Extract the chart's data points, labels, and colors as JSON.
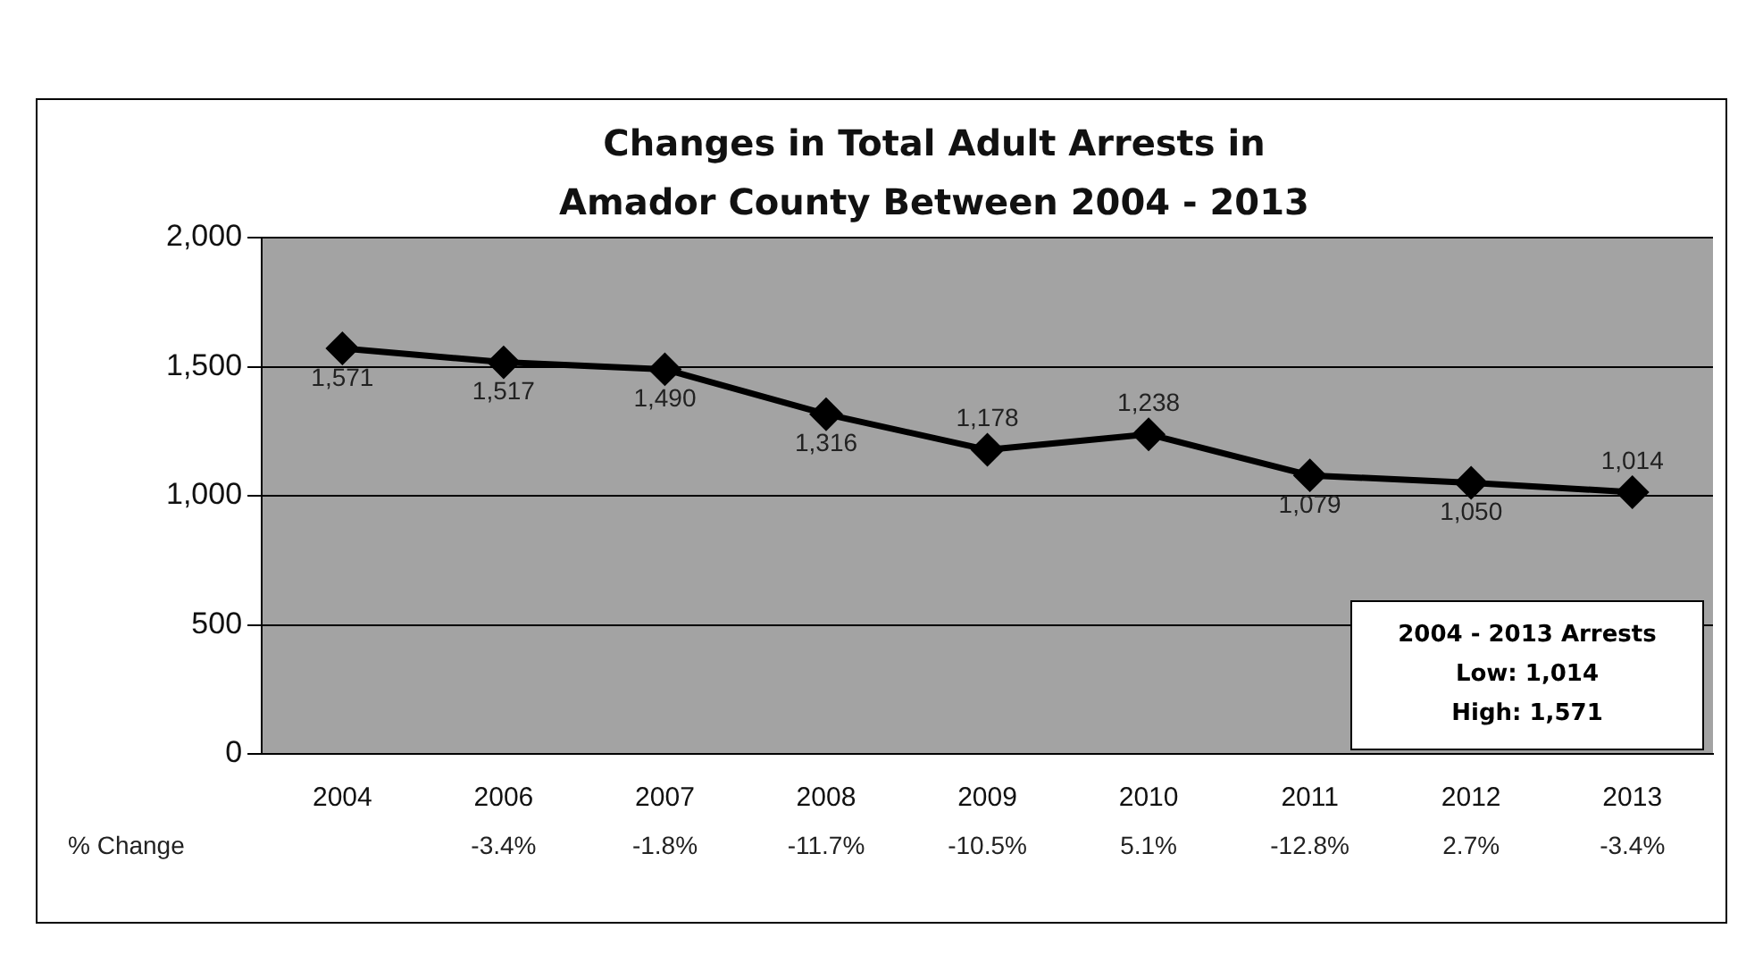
{
  "chart_data": {
    "type": "line",
    "title": "Changes in Total Adult  Arrests in Amador County Between 2004 - 2013",
    "categories": [
      "2004",
      "2006",
      "2007",
      "2008",
      "2009",
      "2010",
      "2011",
      "2012",
      "2013"
    ],
    "series": [
      {
        "color": "#000000",
        "values": [
          1571,
          1517,
          1490,
          1316,
          1178,
          1238,
          1079,
          1050,
          1014
        ]
      }
    ],
    "ylim": [
      0,
      2000
    ],
    "yticks": [
      {
        "value": 0,
        "label": "0"
      },
      {
        "value": 500,
        "label": "500"
      },
      {
        "value": 1000,
        "label": "1,000"
      },
      {
        "value": 1500,
        "label": "1,500"
      },
      {
        "value": 2000,
        "label": "2,000"
      }
    ],
    "value_labels": [
      "1,571",
      "1,517",
      "1,490",
      "1,316",
      "1,178",
      "1,238",
      "1,079",
      "1,050",
      "1,014"
    ],
    "grid": "y",
    "legend": false,
    "marker": "diamond",
    "line_style": "solid",
    "annotations": [
      "% Change",
      "-3.4%",
      "-1.8%",
      "-11.7%",
      "-10.5%",
      "5.1%",
      "-12.8%",
      "2.7%",
      "-3.4%",
      "2004 - 2013 Arrests",
      "Low: 1,014",
      "High: 1,571"
    ]
  }
}
